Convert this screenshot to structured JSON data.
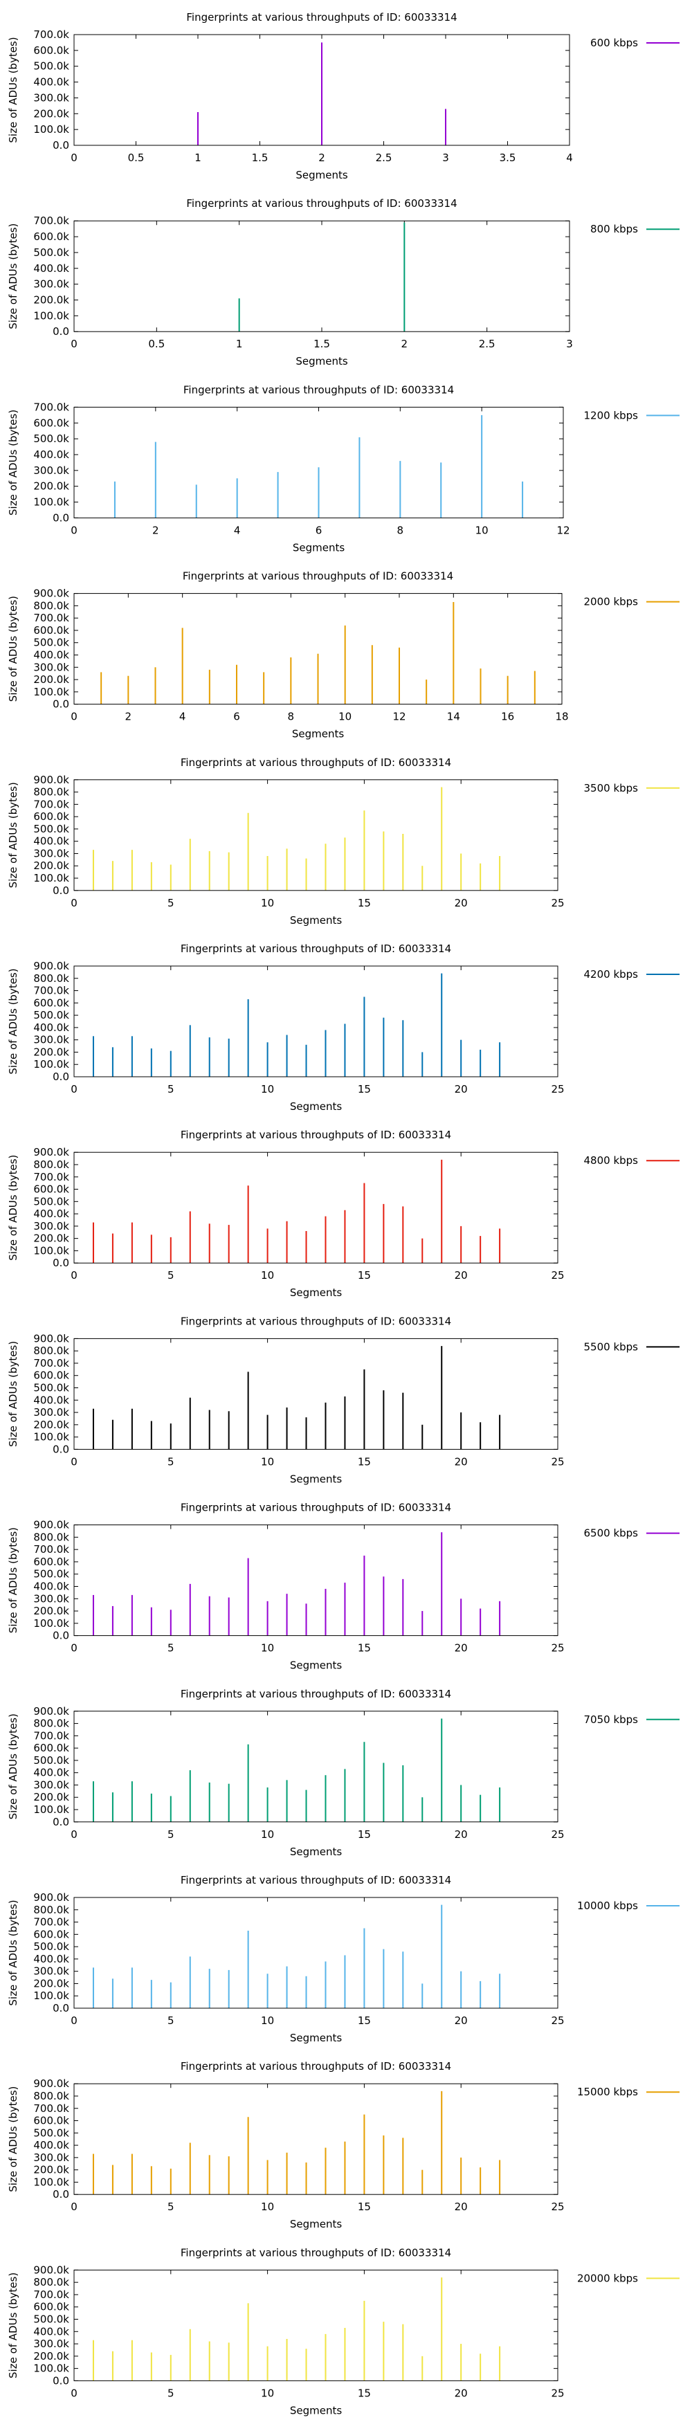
{
  "chart_data": [
    {
      "type": "bar",
      "title": "Fingerprints at various throughputs of ID: 60033314",
      "xlabel": "Segments",
      "ylabel": "Size of ADUs (bytes)",
      "legend": "600 kbps",
      "color": "#9400d3",
      "xlim": [
        0,
        4
      ],
      "xticks": [
        "0",
        "0.5",
        "1",
        "1.5",
        "2",
        "2.5",
        "3",
        "3.5",
        "4"
      ],
      "ylim": [
        0,
        700000
      ],
      "yticks": [
        "0.0",
        "100.0k",
        "200.0k",
        "300.0k",
        "400.0k",
        "500.0k",
        "600.0k",
        "700.0k"
      ],
      "x": [
        1,
        2,
        3
      ],
      "values": [
        210000,
        650000,
        230000
      ]
    },
    {
      "type": "bar",
      "title": "Fingerprints at various throughputs of ID: 60033314",
      "xlabel": "Segments",
      "ylabel": "Size of ADUs (bytes)",
      "legend": "800 kbps",
      "color": "#009e73",
      "xlim": [
        0,
        3
      ],
      "xticks": [
        "0",
        "0.5",
        "1",
        "1.5",
        "2",
        "2.5",
        "3"
      ],
      "ylim": [
        0,
        700000
      ],
      "yticks": [
        "0.0",
        "100.0k",
        "200.0k",
        "300.0k",
        "400.0k",
        "500.0k",
        "600.0k",
        "700.0k"
      ],
      "x": [
        1,
        2
      ],
      "values": [
        210000,
        690000
      ]
    },
    {
      "type": "bar",
      "title": "Fingerprints at various throughputs of ID: 60033314",
      "xlabel": "Segments",
      "ylabel": "Size of ADUs (bytes)",
      "legend": "1200 kbps",
      "color": "#56b4e9",
      "xlim": [
        0,
        12
      ],
      "xticks": [
        "0",
        "2",
        "4",
        "6",
        "8",
        "10",
        "12"
      ],
      "ylim": [
        0,
        700000
      ],
      "yticks": [
        "0.0",
        "100.0k",
        "200.0k",
        "300.0k",
        "400.0k",
        "500.0k",
        "600.0k",
        "700.0k"
      ],
      "x": [
        1,
        2,
        3,
        4,
        5,
        6,
        7,
        8,
        9,
        10,
        11
      ],
      "values": [
        230000,
        480000,
        210000,
        250000,
        290000,
        320000,
        510000,
        360000,
        350000,
        650000,
        230000
      ]
    },
    {
      "type": "bar",
      "title": "Fingerprints at various throughputs of ID: 60033314",
      "xlabel": "Segments",
      "ylabel": "Size of ADUs (bytes)",
      "legend": "2000 kbps",
      "color": "#e69f00",
      "xlim": [
        0,
        18
      ],
      "xticks": [
        "0",
        "2",
        "4",
        "6",
        "8",
        "10",
        "12",
        "14",
        "16",
        "18"
      ],
      "ylim": [
        0,
        900000
      ],
      "yticks": [
        "0.0",
        "100.0k",
        "200.0k",
        "300.0k",
        "400.0k",
        "500.0k",
        "600.0k",
        "700.0k",
        "800.0k",
        "900.0k"
      ],
      "x": [
        1,
        2,
        3,
        4,
        5,
        6,
        7,
        8,
        9,
        10,
        11,
        12,
        13,
        14,
        15,
        16,
        17
      ],
      "values": [
        260000,
        230000,
        300000,
        620000,
        280000,
        320000,
        260000,
        380000,
        410000,
        640000,
        480000,
        460000,
        200000,
        830000,
        290000,
        230000,
        270000
      ]
    },
    {
      "type": "bar",
      "title": "Fingerprints at various throughputs of ID: 60033314",
      "xlabel": "Segments",
      "ylabel": "Size of ADUs (bytes)",
      "legend": "3500 kbps",
      "color": "#f0e442",
      "xlim": [
        0,
        25
      ],
      "xticks": [
        "0",
        "5",
        "10",
        "15",
        "20",
        "25"
      ],
      "ylim": [
        0,
        900000
      ],
      "yticks": [
        "0.0",
        "100.0k",
        "200.0k",
        "300.0k",
        "400.0k",
        "500.0k",
        "600.0k",
        "700.0k",
        "800.0k",
        "900.0k"
      ],
      "x": [
        1,
        2,
        3,
        4,
        5,
        6,
        7,
        8,
        9,
        10,
        11,
        12,
        13,
        14,
        15,
        16,
        17,
        18,
        19,
        20,
        21,
        22
      ],
      "values": [
        330000,
        240000,
        330000,
        230000,
        210000,
        420000,
        320000,
        310000,
        630000,
        280000,
        340000,
        260000,
        380000,
        430000,
        650000,
        480000,
        460000,
        200000,
        840000,
        300000,
        220000,
        280000
      ]
    },
    {
      "type": "bar",
      "title": "Fingerprints at various throughputs of ID: 60033314",
      "xlabel": "Segments",
      "ylabel": "Size of ADUs (bytes)",
      "legend": "4200 kbps",
      "color": "#0072b2",
      "xlim": [
        0,
        25
      ],
      "xticks": [
        "0",
        "5",
        "10",
        "15",
        "20",
        "25"
      ],
      "ylim": [
        0,
        900000
      ],
      "yticks": [
        "0.0",
        "100.0k",
        "200.0k",
        "300.0k",
        "400.0k",
        "500.0k",
        "600.0k",
        "700.0k",
        "800.0k",
        "900.0k"
      ],
      "x": [
        1,
        2,
        3,
        4,
        5,
        6,
        7,
        8,
        9,
        10,
        11,
        12,
        13,
        14,
        15,
        16,
        17,
        18,
        19,
        20,
        21,
        22
      ],
      "values": [
        330000,
        240000,
        330000,
        230000,
        210000,
        420000,
        320000,
        310000,
        630000,
        280000,
        340000,
        260000,
        380000,
        430000,
        650000,
        480000,
        460000,
        200000,
        840000,
        300000,
        220000,
        280000
      ]
    },
    {
      "type": "bar",
      "title": "Fingerprints at various throughputs of ID: 60033314",
      "xlabel": "Segments",
      "ylabel": "Size of ADUs (bytes)",
      "legend": "4800 kbps",
      "color": "#e51e10",
      "xlim": [
        0,
        25
      ],
      "xticks": [
        "0",
        "5",
        "10",
        "15",
        "20",
        "25"
      ],
      "ylim": [
        0,
        900000
      ],
      "yticks": [
        "0.0",
        "100.0k",
        "200.0k",
        "300.0k",
        "400.0k",
        "500.0k",
        "600.0k",
        "700.0k",
        "800.0k",
        "900.0k"
      ],
      "x": [
        1,
        2,
        3,
        4,
        5,
        6,
        7,
        8,
        9,
        10,
        11,
        12,
        13,
        14,
        15,
        16,
        17,
        18,
        19,
        20,
        21,
        22
      ],
      "values": [
        330000,
        240000,
        330000,
        230000,
        210000,
        420000,
        320000,
        310000,
        630000,
        280000,
        340000,
        260000,
        380000,
        430000,
        650000,
        480000,
        460000,
        200000,
        840000,
        300000,
        220000,
        280000
      ]
    },
    {
      "type": "bar",
      "title": "Fingerprints at various throughputs of ID: 60033314",
      "xlabel": "Segments",
      "ylabel": "Size of ADUs (bytes)",
      "legend": "5500 kbps",
      "color": "#000000",
      "xlim": [
        0,
        25
      ],
      "xticks": [
        "0",
        "5",
        "10",
        "15",
        "20",
        "25"
      ],
      "ylim": [
        0,
        900000
      ],
      "yticks": [
        "0.0",
        "100.0k",
        "200.0k",
        "300.0k",
        "400.0k",
        "500.0k",
        "600.0k",
        "700.0k",
        "800.0k",
        "900.0k"
      ],
      "x": [
        1,
        2,
        3,
        4,
        5,
        6,
        7,
        8,
        9,
        10,
        11,
        12,
        13,
        14,
        15,
        16,
        17,
        18,
        19,
        20,
        21,
        22
      ],
      "values": [
        330000,
        240000,
        330000,
        230000,
        210000,
        420000,
        320000,
        310000,
        630000,
        280000,
        340000,
        260000,
        380000,
        430000,
        650000,
        480000,
        460000,
        200000,
        840000,
        300000,
        220000,
        280000
      ]
    },
    {
      "type": "bar",
      "title": "Fingerprints at various throughputs of ID: 60033314",
      "xlabel": "Segments",
      "ylabel": "Size of ADUs (bytes)",
      "legend": "6500 kbps",
      "color": "#9400d3",
      "xlim": [
        0,
        25
      ],
      "xticks": [
        "0",
        "5",
        "10",
        "15",
        "20",
        "25"
      ],
      "ylim": [
        0,
        900000
      ],
      "yticks": [
        "0.0",
        "100.0k",
        "200.0k",
        "300.0k",
        "400.0k",
        "500.0k",
        "600.0k",
        "700.0k",
        "800.0k",
        "900.0k"
      ],
      "x": [
        1,
        2,
        3,
        4,
        5,
        6,
        7,
        8,
        9,
        10,
        11,
        12,
        13,
        14,
        15,
        16,
        17,
        18,
        19,
        20,
        21,
        22
      ],
      "values": [
        330000,
        240000,
        330000,
        230000,
        210000,
        420000,
        320000,
        310000,
        630000,
        280000,
        340000,
        260000,
        380000,
        430000,
        650000,
        480000,
        460000,
        200000,
        840000,
        300000,
        220000,
        280000
      ]
    },
    {
      "type": "bar",
      "title": "Fingerprints at various throughputs of ID: 60033314",
      "xlabel": "Segments",
      "ylabel": "Size of ADUs (bytes)",
      "legend": "7050 kbps",
      "color": "#009e73",
      "xlim": [
        0,
        25
      ],
      "xticks": [
        "0",
        "5",
        "10",
        "15",
        "20",
        "25"
      ],
      "ylim": [
        0,
        900000
      ],
      "yticks": [
        "0.0",
        "100.0k",
        "200.0k",
        "300.0k",
        "400.0k",
        "500.0k",
        "600.0k",
        "700.0k",
        "800.0k",
        "900.0k"
      ],
      "x": [
        1,
        2,
        3,
        4,
        5,
        6,
        7,
        8,
        9,
        10,
        11,
        12,
        13,
        14,
        15,
        16,
        17,
        18,
        19,
        20,
        21,
        22
      ],
      "values": [
        330000,
        240000,
        330000,
        230000,
        210000,
        420000,
        320000,
        310000,
        630000,
        280000,
        340000,
        260000,
        380000,
        430000,
        650000,
        480000,
        460000,
        200000,
        840000,
        300000,
        220000,
        280000
      ]
    },
    {
      "type": "bar",
      "title": "Fingerprints at various throughputs of ID: 60033314",
      "xlabel": "Segments",
      "ylabel": "Size of ADUs (bytes)",
      "legend": "10000 kbps",
      "color": "#56b4e9",
      "xlim": [
        0,
        25
      ],
      "xticks": [
        "0",
        "5",
        "10",
        "15",
        "20",
        "25"
      ],
      "ylim": [
        0,
        900000
      ],
      "yticks": [
        "0.0",
        "100.0k",
        "200.0k",
        "300.0k",
        "400.0k",
        "500.0k",
        "600.0k",
        "700.0k",
        "800.0k",
        "900.0k"
      ],
      "x": [
        1,
        2,
        3,
        4,
        5,
        6,
        7,
        8,
        9,
        10,
        11,
        12,
        13,
        14,
        15,
        16,
        17,
        18,
        19,
        20,
        21,
        22
      ],
      "values": [
        330000,
        240000,
        330000,
        230000,
        210000,
        420000,
        320000,
        310000,
        630000,
        280000,
        340000,
        260000,
        380000,
        430000,
        650000,
        480000,
        460000,
        200000,
        840000,
        300000,
        220000,
        280000
      ]
    },
    {
      "type": "bar",
      "title": "Fingerprints at various throughputs of ID: 60033314",
      "xlabel": "Segments",
      "ylabel": "Size of ADUs (bytes)",
      "legend": "15000 kbps",
      "color": "#e69f00",
      "xlim": [
        0,
        25
      ],
      "xticks": [
        "0",
        "5",
        "10",
        "15",
        "20",
        "25"
      ],
      "ylim": [
        0,
        900000
      ],
      "yticks": [
        "0.0",
        "100.0k",
        "200.0k",
        "300.0k",
        "400.0k",
        "500.0k",
        "600.0k",
        "700.0k",
        "800.0k",
        "900.0k"
      ],
      "x": [
        1,
        2,
        3,
        4,
        5,
        6,
        7,
        8,
        9,
        10,
        11,
        12,
        13,
        14,
        15,
        16,
        17,
        18,
        19,
        20,
        21,
        22
      ],
      "values": [
        330000,
        240000,
        330000,
        230000,
        210000,
        420000,
        320000,
        310000,
        630000,
        280000,
        340000,
        260000,
        380000,
        430000,
        650000,
        480000,
        460000,
        200000,
        840000,
        300000,
        220000,
        280000
      ]
    },
    {
      "type": "bar",
      "title": "Fingerprints at various throughputs of ID: 60033314",
      "xlabel": "Segments",
      "ylabel": "Size of ADUs (bytes)",
      "legend": "20000 kbps",
      "color": "#f0e442",
      "xlim": [
        0,
        25
      ],
      "xticks": [
        "0",
        "5",
        "10",
        "15",
        "20",
        "25"
      ],
      "ylim": [
        0,
        900000
      ],
      "yticks": [
        "0.0",
        "100.0k",
        "200.0k",
        "300.0k",
        "400.0k",
        "500.0k",
        "600.0k",
        "700.0k",
        "800.0k",
        "900.0k"
      ],
      "x": [
        1,
        2,
        3,
        4,
        5,
        6,
        7,
        8,
        9,
        10,
        11,
        12,
        13,
        14,
        15,
        16,
        17,
        18,
        19,
        20,
        21,
        22
      ],
      "values": [
        330000,
        240000,
        330000,
        230000,
        210000,
        420000,
        320000,
        310000,
        630000,
        280000,
        340000,
        260000,
        380000,
        430000,
        650000,
        480000,
        460000,
        200000,
        840000,
        300000,
        220000,
        280000
      ]
    }
  ]
}
